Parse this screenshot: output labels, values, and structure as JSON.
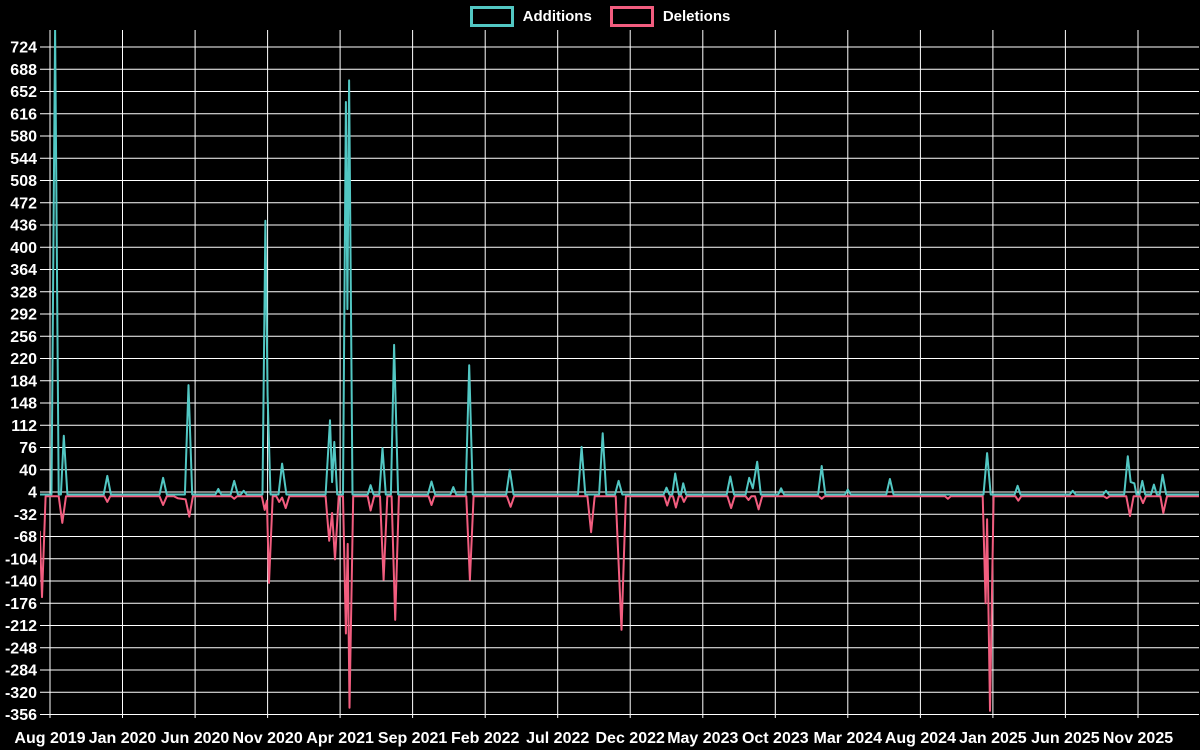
{
  "legend": [
    {
      "label": "Additions",
      "color": "#52c7c3"
    },
    {
      "label": "Deletions",
      "color": "#f25d7f"
    }
  ],
  "chart_data": {
    "type": "line",
    "title": "",
    "xlabel": "",
    "ylabel": "",
    "background_color": "#000000",
    "grid": true,
    "grid_color": "#ffffff",
    "text_color": "#ffffff",
    "legend_position": "top-center",
    "y_ticks": [
      -356,
      -320,
      -284,
      -248,
      -212,
      -176,
      -140,
      -104,
      -68,
      -32,
      4,
      40,
      76,
      112,
      148,
      184,
      220,
      256,
      292,
      328,
      364,
      400,
      436,
      472,
      508,
      544,
      580,
      616,
      652,
      688,
      724
    ],
    "ylim": [
      -356,
      724
    ],
    "x_tick_labels": [
      "Aug 2019",
      "Jan 2020",
      "Jun 2020",
      "Nov 2020",
      "Apr 2021",
      "Sep 2021",
      "Feb 2022",
      "Jul 2022",
      "Dec 2022",
      "May 2023",
      "Oct 2023",
      "Mar 2024",
      "Aug 2024",
      "Jan 2025",
      "Jun 2025",
      "Nov 2025"
    ],
    "x_tick_months": [
      0,
      5,
      10,
      15,
      20,
      25,
      30,
      35,
      40,
      45,
      50,
      55,
      60,
      65,
      70,
      75
    ],
    "x_unit": "months since Aug 2019",
    "series": [
      {
        "name": "Additions",
        "color": "#52c7c3",
        "points": [
          [
            -0.7,
            0
          ],
          [
            0.1,
            0
          ],
          [
            0.35,
            755
          ],
          [
            0.6,
            0
          ],
          [
            0.75,
            0
          ],
          [
            0.95,
            95
          ],
          [
            1.2,
            0
          ],
          [
            3.7,
            0
          ],
          [
            3.95,
            30
          ],
          [
            4.2,
            0
          ],
          [
            7.55,
            0
          ],
          [
            7.8,
            27
          ],
          [
            8.05,
            0
          ],
          [
            9.3,
            0
          ],
          [
            9.55,
            177
          ],
          [
            9.8,
            0
          ],
          [
            11.4,
            0
          ],
          [
            11.6,
            9
          ],
          [
            11.8,
            0
          ],
          [
            12.45,
            0
          ],
          [
            12.7,
            22
          ],
          [
            12.95,
            0
          ],
          [
            13.15,
            0
          ],
          [
            13.35,
            6
          ],
          [
            13.55,
            0
          ],
          [
            14.65,
            0
          ],
          [
            14.85,
            443
          ],
          [
            15.0,
            160
          ],
          [
            15.2,
            0
          ],
          [
            15.75,
            0
          ],
          [
            16.0,
            50
          ],
          [
            16.3,
            0
          ],
          [
            19.0,
            0
          ],
          [
            19.3,
            120
          ],
          [
            19.45,
            20
          ],
          [
            19.6,
            85
          ],
          [
            19.8,
            0
          ],
          [
            20.2,
            0
          ],
          [
            20.4,
            635
          ],
          [
            20.5,
            300
          ],
          [
            20.62,
            670
          ],
          [
            20.85,
            0
          ],
          [
            21.9,
            0
          ],
          [
            22.1,
            15
          ],
          [
            22.3,
            0
          ],
          [
            22.7,
            0
          ],
          [
            22.92,
            75
          ],
          [
            23.15,
            0
          ],
          [
            23.5,
            0
          ],
          [
            23.72,
            242
          ],
          [
            24.0,
            0
          ],
          [
            26.05,
            0
          ],
          [
            26.3,
            21
          ],
          [
            26.55,
            0
          ],
          [
            27.6,
            0
          ],
          [
            27.8,
            12
          ],
          [
            28.0,
            0
          ],
          [
            28.65,
            0
          ],
          [
            28.9,
            209
          ],
          [
            29.15,
            0
          ],
          [
            31.45,
            0
          ],
          [
            31.7,
            40
          ],
          [
            31.95,
            0
          ],
          [
            36.4,
            0
          ],
          [
            36.65,
            77
          ],
          [
            36.9,
            0
          ],
          [
            37.85,
            0
          ],
          [
            38.1,
            99
          ],
          [
            38.35,
            0
          ],
          [
            38.95,
            0
          ],
          [
            39.2,
            22
          ],
          [
            39.45,
            0
          ],
          [
            42.3,
            0
          ],
          [
            42.5,
            11
          ],
          [
            42.7,
            0
          ],
          [
            42.9,
            0
          ],
          [
            43.1,
            34
          ],
          [
            43.35,
            0
          ],
          [
            43.5,
            0
          ],
          [
            43.65,
            18
          ],
          [
            43.85,
            0
          ],
          [
            46.65,
            0
          ],
          [
            46.9,
            29
          ],
          [
            47.15,
            0
          ],
          [
            47.95,
            0
          ],
          [
            48.2,
            27
          ],
          [
            48.45,
            10
          ],
          [
            48.75,
            53
          ],
          [
            49.0,
            0
          ],
          [
            50.2,
            0
          ],
          [
            50.4,
            10
          ],
          [
            50.6,
            0
          ],
          [
            52.95,
            0
          ],
          [
            53.2,
            46
          ],
          [
            53.45,
            0
          ],
          [
            54.8,
            0
          ],
          [
            55.0,
            8
          ],
          [
            55.2,
            0
          ],
          [
            57.65,
            0
          ],
          [
            57.9,
            25
          ],
          [
            58.15,
            0
          ],
          [
            64.35,
            0
          ],
          [
            64.6,
            67
          ],
          [
            64.85,
            0
          ],
          [
            66.5,
            0
          ],
          [
            66.7,
            14
          ],
          [
            66.9,
            0
          ],
          [
            70.3,
            0
          ],
          [
            70.5,
            6
          ],
          [
            70.7,
            0
          ],
          [
            72.6,
            0
          ],
          [
            72.8,
            6
          ],
          [
            73.0,
            0
          ],
          [
            74.05,
            0
          ],
          [
            74.3,
            62
          ],
          [
            74.5,
            20
          ],
          [
            74.75,
            18
          ],
          [
            74.9,
            0
          ],
          [
            75.1,
            0
          ],
          [
            75.3,
            22
          ],
          [
            75.5,
            0
          ],
          [
            75.9,
            0
          ],
          [
            76.1,
            16
          ],
          [
            76.3,
            0
          ],
          [
            76.5,
            0
          ],
          [
            76.7,
            32
          ],
          [
            76.95,
            0
          ],
          [
            79.3,
            0
          ]
        ]
      },
      {
        "name": "Deletions",
        "color": "#f25d7f",
        "points": [
          [
            -0.7,
            -60
          ],
          [
            -0.55,
            -166
          ],
          [
            -0.3,
            -3
          ],
          [
            0.6,
            -3
          ],
          [
            0.85,
            -46
          ],
          [
            1.1,
            -3
          ],
          [
            3.75,
            -3
          ],
          [
            3.95,
            -12
          ],
          [
            4.15,
            -3
          ],
          [
            7.55,
            -3
          ],
          [
            7.8,
            -17
          ],
          [
            8.05,
            -3
          ],
          [
            8.55,
            -3
          ],
          [
            8.8,
            -6
          ],
          [
            9.35,
            -8
          ],
          [
            9.6,
            -36
          ],
          [
            9.85,
            -3
          ],
          [
            12.5,
            -3
          ],
          [
            12.7,
            -7
          ],
          [
            12.9,
            -3
          ],
          [
            14.6,
            -3
          ],
          [
            14.8,
            -25
          ],
          [
            14.95,
            -10
          ],
          [
            15.1,
            -143
          ],
          [
            15.35,
            -3
          ],
          [
            15.6,
            -3
          ],
          [
            15.8,
            -12
          ],
          [
            16.0,
            -5
          ],
          [
            16.25,
            -22
          ],
          [
            16.5,
            -3
          ],
          [
            19.0,
            -3
          ],
          [
            19.25,
            -75
          ],
          [
            19.45,
            -30
          ],
          [
            19.65,
            -105
          ],
          [
            19.9,
            -3
          ],
          [
            20.2,
            -3
          ],
          [
            20.4,
            -225
          ],
          [
            20.52,
            -80
          ],
          [
            20.65,
            -345
          ],
          [
            20.9,
            -3
          ],
          [
            21.9,
            -3
          ],
          [
            22.1,
            -26
          ],
          [
            22.35,
            -3
          ],
          [
            22.75,
            -3
          ],
          [
            23.0,
            -138
          ],
          [
            23.25,
            -3
          ],
          [
            23.55,
            -3
          ],
          [
            23.8,
            -203
          ],
          [
            24.05,
            -3
          ],
          [
            26.1,
            -3
          ],
          [
            26.3,
            -17
          ],
          [
            26.5,
            -3
          ],
          [
            28.7,
            -3
          ],
          [
            28.95,
            -138
          ],
          [
            29.2,
            -3
          ],
          [
            31.5,
            -3
          ],
          [
            31.75,
            -20
          ],
          [
            32.0,
            -3
          ],
          [
            37.05,
            -3
          ],
          [
            37.3,
            -61
          ],
          [
            37.55,
            -3
          ],
          [
            39.0,
            -3
          ],
          [
            39.4,
            -219
          ],
          [
            39.7,
            -3
          ],
          [
            42.35,
            -3
          ],
          [
            42.55,
            -18
          ],
          [
            42.75,
            -3
          ],
          [
            42.95,
            -3
          ],
          [
            43.15,
            -21
          ],
          [
            43.35,
            -3
          ],
          [
            43.55,
            -3
          ],
          [
            43.7,
            -12
          ],
          [
            43.9,
            -3
          ],
          [
            46.7,
            -3
          ],
          [
            46.95,
            -22
          ],
          [
            47.2,
            -3
          ],
          [
            47.95,
            -3
          ],
          [
            48.15,
            -9
          ],
          [
            48.35,
            -3
          ],
          [
            48.6,
            -3
          ],
          [
            48.85,
            -24
          ],
          [
            49.1,
            -3
          ],
          [
            53.0,
            -3
          ],
          [
            53.2,
            -7
          ],
          [
            53.4,
            -3
          ],
          [
            61.7,
            -3
          ],
          [
            61.9,
            -7
          ],
          [
            62.1,
            -3
          ],
          [
            64.3,
            -3
          ],
          [
            64.5,
            -176
          ],
          [
            64.6,
            -40
          ],
          [
            64.8,
            -350
          ],
          [
            65.05,
            -3
          ],
          [
            66.55,
            -3
          ],
          [
            66.75,
            -10
          ],
          [
            66.95,
            -3
          ],
          [
            72.65,
            -3
          ],
          [
            72.85,
            -6
          ],
          [
            73.05,
            -3
          ],
          [
            74.2,
            -3
          ],
          [
            74.45,
            -35
          ],
          [
            74.7,
            -3
          ],
          [
            75.15,
            -3
          ],
          [
            75.35,
            -14
          ],
          [
            75.55,
            -3
          ],
          [
            76.55,
            -3
          ],
          [
            76.75,
            -30
          ],
          [
            77.0,
            -3
          ],
          [
            79.3,
            -3
          ]
        ]
      }
    ]
  }
}
